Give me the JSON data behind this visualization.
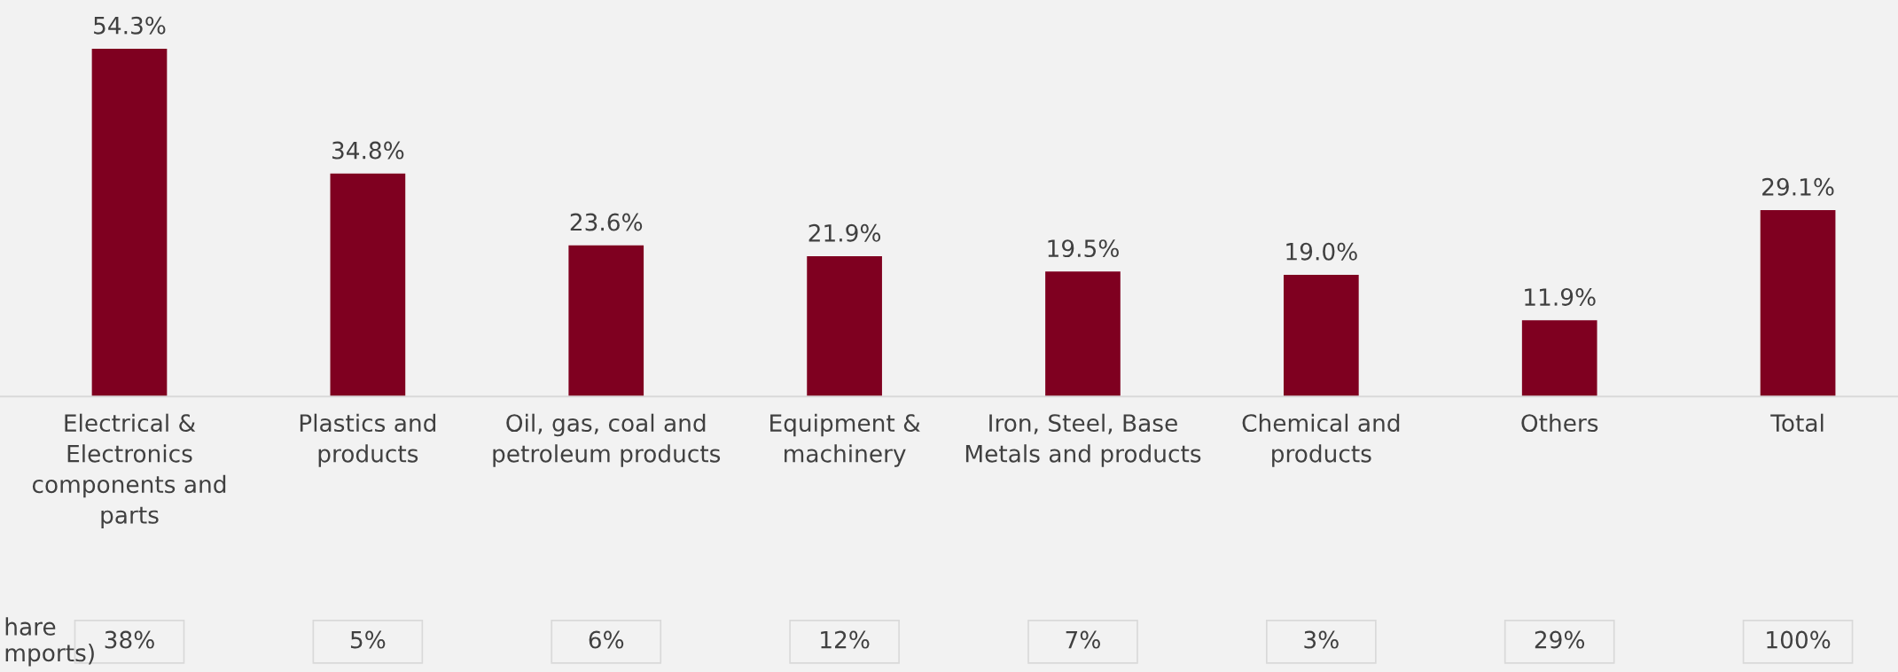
{
  "chart_data": {
    "type": "bar",
    "categories": [
      "Electrical &\nElectronics\ncomponents and\nparts",
      "Plastics and\nproducts",
      "Oil, gas, coal and\npetroleum products",
      "Equipment &\nmachinery",
      "Iron, Steel, Base\nMetals and products",
      "Chemical and\nproducts",
      "Others",
      "Total"
    ],
    "values": [
      54.3,
      34.8,
      23.6,
      21.9,
      19.5,
      19.0,
      11.9,
      29.1
    ],
    "value_labels": [
      "54.3%",
      "34.8%",
      "23.6%",
      "21.9%",
      "19.5%",
      "19.0%",
      "11.9%",
      "29.1%"
    ],
    "color": "#7f0020",
    "annotations": [
      "hare\nmports)",
      "38%",
      "5%",
      "6%",
      "12%",
      "7%",
      "3%",
      "29%",
      "100%"
    ],
    "grid": false,
    "legend": false
  }
}
